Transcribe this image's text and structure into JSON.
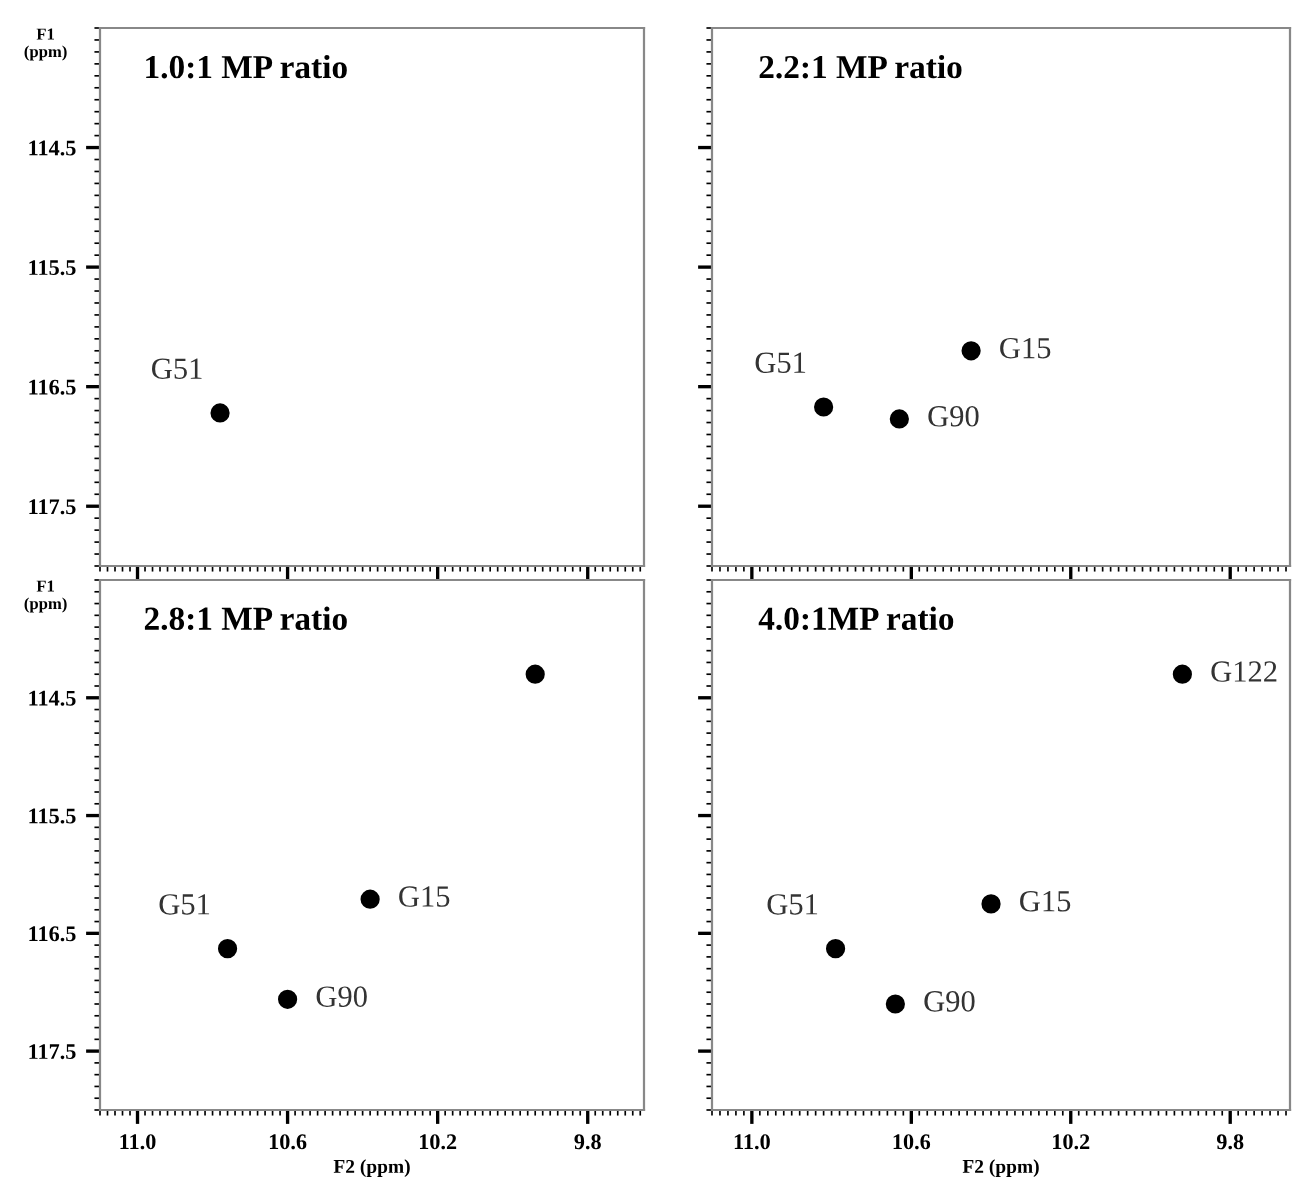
{
  "chart_data": [
    {
      "type": "scatter",
      "title": "1.0:1 MP ratio",
      "ylabel": "F1\n(ppm)",
      "x": [
        10.78
      ],
      "values": [
        116.72
      ],
      "color": "#000000",
      "marker": "circle",
      "xlim": [
        11.1,
        9.65
      ],
      "ylim": [
        118,
        113.5
      ],
      "xticks": [
        {
          "value": 11.0,
          "label": null
        },
        {
          "value": 10.6,
          "label": null
        },
        {
          "value": 10.2,
          "label": null
        },
        {
          "value": 9.8,
          "label": null
        }
      ],
      "yticks": [
        114.5,
        115.5,
        116.5,
        117.5
      ],
      "tick_labels": "y",
      "grid": false,
      "legend": false,
      "annotations": [
        {
          "text": "G51",
          "x": 10.78,
          "y": 116.72
        }
      ]
    },
    {
      "type": "scatter",
      "title": "2.2:1 MP ratio",
      "x": [
        10.82,
        10.45,
        10.63
      ],
      "values": [
        116.67,
        116.2,
        116.77
      ],
      "color": "#000000",
      "marker": "circle",
      "xlim": [
        11.1,
        9.65
      ],
      "ylim": [
        118,
        113.5
      ],
      "xticks": [
        {
          "value": 11.0,
          "label": null
        },
        {
          "value": 10.6,
          "label": null
        },
        {
          "value": 10.2,
          "label": null
        },
        {
          "value": 9.8,
          "label": null
        }
      ],
      "yticks": [
        114.5,
        115.5,
        116.5,
        117.5
      ],
      "tick_labels": false,
      "grid": false,
      "legend": false,
      "annotations": [
        {
          "text": "G51",
          "x": 10.82,
          "y": 116.67
        },
        {
          "text": "G15",
          "x": 10.45,
          "y": 116.2
        },
        {
          "text": "G90",
          "x": 10.63,
          "y": 116.77
        }
      ]
    },
    {
      "type": "scatter",
      "title": "2.8:1 MP ratio",
      "ylabel": "F1\n(ppm)",
      "xlabel": "F2 (ppm)",
      "x": [
        9.94,
        10.76,
        10.38,
        10.6
      ],
      "values": [
        114.3,
        116.63,
        116.21,
        117.06
      ],
      "color": "#000000",
      "marker": "circle",
      "xlim": [
        11.1,
        9.65
      ],
      "ylim": [
        118,
        113.5
      ],
      "xticks": [
        {
          "value": 11.0,
          "label": "11.0"
        },
        10.6,
        10.2,
        9.8
      ],
      "yticks": [
        114.5,
        115.5,
        116.5,
        117.5
      ],
      "grid": false,
      "legend": false,
      "annotations": [
        {
          "text": "G51",
          "x": 10.76,
          "y": 116.63
        },
        {
          "text": "G15",
          "x": 10.38,
          "y": 116.21
        },
        {
          "text": "G90",
          "x": 10.6,
          "y": 117.06
        }
      ]
    },
    {
      "type": "scatter",
      "title": "4.0:1MP ratio",
      "xlabel": "F2 (ppm)",
      "x": [
        9.92,
        10.79,
        10.4,
        10.64
      ],
      "values": [
        114.3,
        116.63,
        116.25,
        117.1
      ],
      "color": "#000000",
      "marker": "circle",
      "xlim": [
        11.1,
        9.65
      ],
      "ylim": [
        118,
        113.5
      ],
      "xticks": [
        {
          "value": 11.0,
          "label": "11.0"
        },
        10.6,
        10.2,
        9.8
      ],
      "yticks": [
        114.5,
        115.5,
        116.5,
        117.5
      ],
      "tick_labels": "x",
      "grid": false,
      "legend": false,
      "annotations": [
        {
          "text": "G122",
          "x": 9.92,
          "y": 114.3
        },
        {
          "text": "G51",
          "x": 10.79,
          "y": 116.63
        },
        {
          "text": "G15",
          "x": 10.4,
          "y": 116.25
        },
        {
          "text": "G90",
          "x": 10.64,
          "y": 117.1
        }
      ]
    }
  ]
}
